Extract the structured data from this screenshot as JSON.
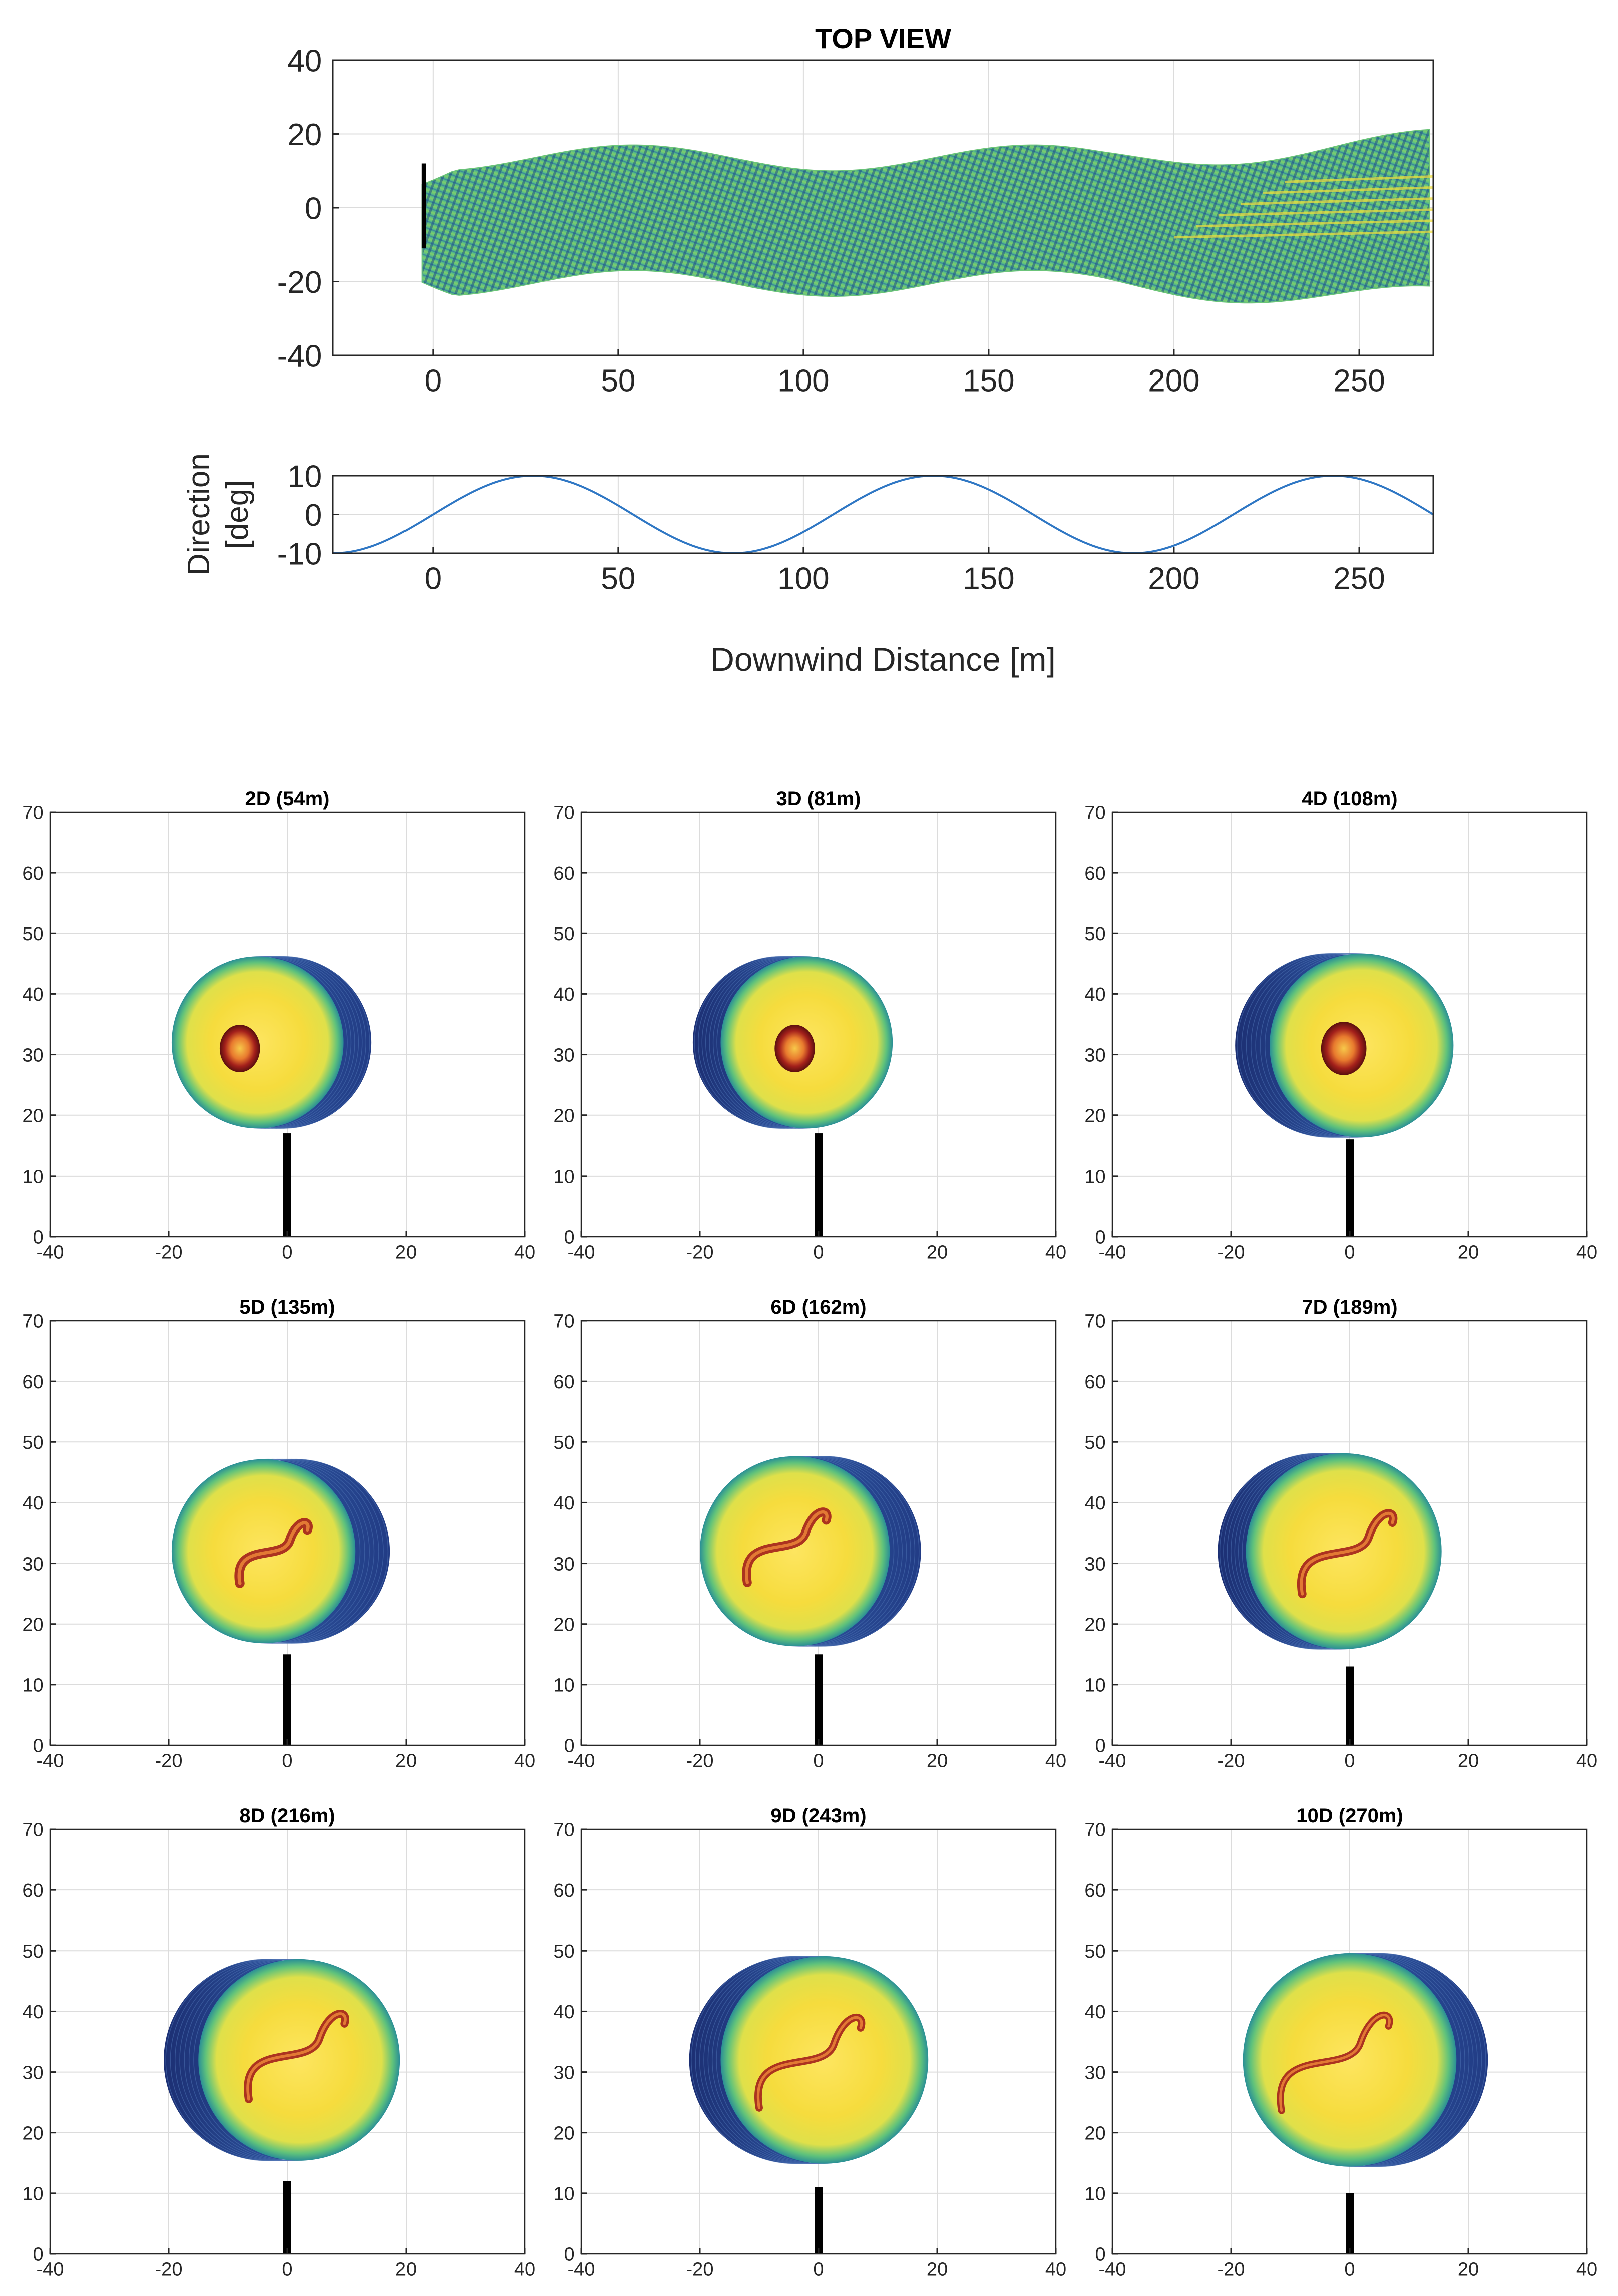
{
  "colors": {
    "background": "#ffffff",
    "axis": "#262626",
    "grid": "#dcdcdc",
    "direction_line": "#2f77c4",
    "wake_deep_blue": "#253f86",
    "wake_teal": "#1f8a9a",
    "wake_green": "#5cc07a",
    "wake_yellow": "#f3e03a",
    "wake_core_red": "#a3201b",
    "tower": "#000000"
  },
  "chart_data": [
    {
      "id": "top-view",
      "type": "area",
      "title": "TOP VIEW",
      "xlim": [
        -27,
        270
      ],
      "ylim": [
        -40,
        40
      ],
      "xticks": [
        0,
        50,
        100,
        150,
        200,
        250
      ],
      "yticks": [
        -40,
        -20,
        0,
        20,
        40
      ],
      "xtick_labels": [
        "0",
        "50",
        "100",
        "150",
        "200",
        "250"
      ],
      "ytick_labels": [
        "-40",
        "-20",
        "0",
        "20",
        "40"
      ],
      "grid": true,
      "wake_start_x": -3,
      "wake_halfwidth": 17,
      "wake_center_amplitude": 3.5,
      "wake_period": 108,
      "wake_phase_offset": 0
    },
    {
      "id": "direction",
      "type": "line",
      "ylabel_lines": [
        "Direction",
        "[deg]"
      ],
      "xlabel": "Downwind Distance [m]",
      "xlim": [
        -27,
        270
      ],
      "ylim": [
        -10,
        10
      ],
      "xticks": [
        0,
        50,
        100,
        150,
        200,
        250
      ],
      "yticks": [
        -10,
        0,
        10
      ],
      "xtick_labels": [
        "0",
        "50",
        "100",
        "150",
        "200",
        "250"
      ],
      "ytick_labels": [
        "-10",
        "0",
        "10"
      ],
      "grid": true,
      "amplitude": 10,
      "period": 108,
      "peak_x": 27,
      "series": [
        {
          "name": "direction",
          "x": [
            -27,
            0,
            27,
            54,
            81,
            108,
            135,
            162,
            189,
            216,
            243,
            270
          ],
          "y": [
            -10,
            0,
            10,
            0,
            -10,
            0,
            10,
            0,
            -10,
            0,
            10,
            0
          ]
        }
      ]
    },
    {
      "id": "cross-sections",
      "type": "heatmap",
      "xlim": [
        -40,
        40
      ],
      "ylim": [
        0,
        70
      ],
      "xticks": [
        -40,
        -20,
        0,
        20,
        40
      ],
      "yticks": [
        0,
        10,
        20,
        30,
        40,
        50,
        60,
        70
      ],
      "xtick_labels": [
        "-40",
        "-20",
        "0",
        "20",
        "40"
      ],
      "ytick_labels": [
        "0",
        "10",
        "20",
        "30",
        "40",
        "50",
        "60",
        "70"
      ],
      "grid": true,
      "panels": [
        {
          "title": "2D (54m)",
          "distance_m": 54,
          "disk_center": [
            -5,
            32
          ],
          "disk_radius": 14.5,
          "shadow_shift": 8,
          "core": [
            -8,
            31
          ],
          "core_radius": 4.0,
          "tower_top": 17
        },
        {
          "title": "3D (81m)",
          "distance_m": 81,
          "disk_center": [
            -2,
            32
          ],
          "disk_radius": 14.5,
          "shadow_shift": -8,
          "core": [
            -4,
            31
          ],
          "core_radius": 4.0,
          "tower_top": 17
        },
        {
          "title": "4D (108m)",
          "distance_m": 108,
          "disk_center": [
            2,
            31.5
          ],
          "disk_radius": 15.5,
          "shadow_shift": -10,
          "core": [
            -1,
            31
          ],
          "core_radius": 4.5,
          "tower_top": 16
        },
        {
          "title": "5D (135m)",
          "distance_m": 135,
          "disk_center": [
            -4,
            32
          ],
          "disk_radius": 15.5,
          "shadow_shift": 10,
          "core": [
            -2,
            32
          ],
          "core_radius": 6.0,
          "tower_top": 15
        },
        {
          "title": "6D (162m)",
          "distance_m": 162,
          "disk_center": [
            -4,
            32
          ],
          "disk_radius": 16.0,
          "shadow_shift": 9,
          "core": [
            -5,
            33
          ],
          "core_radius": 7.0,
          "tower_top": 15
        },
        {
          "title": "7D (189m)",
          "distance_m": 189,
          "disk_center": [
            -1,
            32
          ],
          "disk_radius": 16.5,
          "shadow_shift": -8,
          "core": [
            0,
            32
          ],
          "core_radius": 8.0,
          "tower_top": 13
        },
        {
          "title": "8D (216m)",
          "distance_m": 216,
          "disk_center": [
            2,
            32
          ],
          "disk_radius": 17.0,
          "shadow_shift": -10,
          "core": [
            2,
            33
          ],
          "core_radius": 8.5,
          "tower_top": 12
        },
        {
          "title": "9D (243m)",
          "distance_m": 243,
          "disk_center": [
            1,
            32
          ],
          "disk_radius": 17.5,
          "shadow_shift": -9,
          "core": [
            -1,
            32
          ],
          "core_radius": 9.0,
          "tower_top": 11
        },
        {
          "title": "10D (270m)",
          "distance_m": 270,
          "disk_center": [
            0,
            32
          ],
          "disk_radius": 18.0,
          "shadow_shift": 9,
          "core": [
            -2,
            32
          ],
          "core_radius": 9.5,
          "tower_top": 10
        }
      ]
    }
  ]
}
